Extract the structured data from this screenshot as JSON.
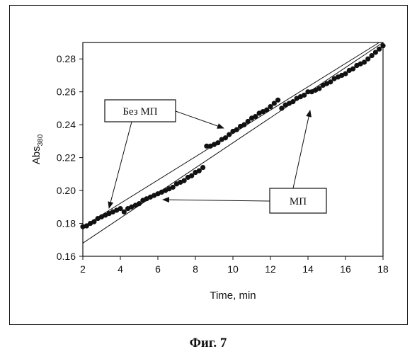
{
  "chart_data": {
    "type": "scatter",
    "xlabel": "Time, min",
    "ylabel": "Abs",
    "ylabel_sub": "380",
    "xlim": [
      2,
      18
    ],
    "ylim": [
      0.16,
      0.29
    ],
    "x_ticks": [
      "2",
      "4",
      "6",
      "8",
      "10",
      "12",
      "14",
      "16",
      "18"
    ],
    "y_ticks": [
      "0.16",
      "0.18",
      "0.20",
      "0.22",
      "0.24",
      "0.26",
      "0.28"
    ],
    "grid": false,
    "series": [
      {
        "x": [
          2.0,
          2.2,
          2.4,
          2.6,
          2.8,
          3.0,
          3.2,
          3.4,
          3.6,
          3.8,
          4.0
        ],
        "y": [
          0.178,
          0.1785,
          0.18,
          0.181,
          0.183,
          0.184,
          0.185,
          0.186,
          0.187,
          0.188,
          0.189
        ]
      },
      {
        "x": [
          4.2,
          4.4,
          4.6,
          4.8,
          5.0,
          5.2,
          5.4,
          5.6,
          5.8,
          6.0,
          6.2,
          6.4,
          6.6,
          6.8,
          7.0,
          7.2,
          7.4,
          7.6,
          7.8,
          8.0,
          8.2,
          8.4
        ],
        "y": [
          0.187,
          0.189,
          0.19,
          0.191,
          0.192,
          0.194,
          0.195,
          0.196,
          0.197,
          0.198,
          0.199,
          0.2,
          0.201,
          0.202,
          0.204,
          0.205,
          0.206,
          0.208,
          0.209,
          0.211,
          0.212,
          0.214
        ]
      },
      {
        "x": [
          8.6,
          8.8,
          9.0,
          9.2,
          9.4,
          9.6,
          9.8,
          10.0,
          10.2,
          10.4,
          10.6,
          10.8,
          11.0,
          11.2,
          11.4,
          11.6,
          11.8,
          12.0,
          12.2,
          12.4
        ],
        "y": [
          0.227,
          0.227,
          0.228,
          0.229,
          0.231,
          0.232,
          0.234,
          0.236,
          0.237,
          0.239,
          0.24,
          0.242,
          0.244,
          0.245,
          0.247,
          0.248,
          0.249,
          0.251,
          0.253,
          0.255
        ]
      },
      {
        "x": [
          12.6,
          12.8,
          13.0,
          13.2,
          13.4,
          13.6,
          13.8,
          14.0,
          14.2,
          14.4,
          14.6,
          14.8,
          15.0,
          15.2,
          15.4,
          15.6,
          15.8,
          16.0,
          16.2,
          16.4,
          16.6,
          16.8,
          17.0,
          17.2,
          17.4,
          17.6,
          17.8,
          18.0
        ],
        "y": [
          0.25,
          0.252,
          0.253,
          0.254,
          0.256,
          0.257,
          0.258,
          0.26,
          0.26,
          0.261,
          0.262,
          0.264,
          0.265,
          0.266,
          0.268,
          0.269,
          0.27,
          0.271,
          0.273,
          0.274,
          0.276,
          0.277,
          0.278,
          0.28,
          0.282,
          0.284,
          0.286,
          0.288
        ]
      }
    ],
    "reference_lines": [
      {
        "x": [
          2,
          17.8
        ],
        "y": [
          0.178,
          0.29
        ]
      },
      {
        "x": [
          2,
          18
        ],
        "y": [
          0.168,
          0.29
        ]
      }
    ],
    "annotations": {
      "without_field": "Без МП",
      "with_field": "МП"
    }
  },
  "caption": "Фиг. 7"
}
